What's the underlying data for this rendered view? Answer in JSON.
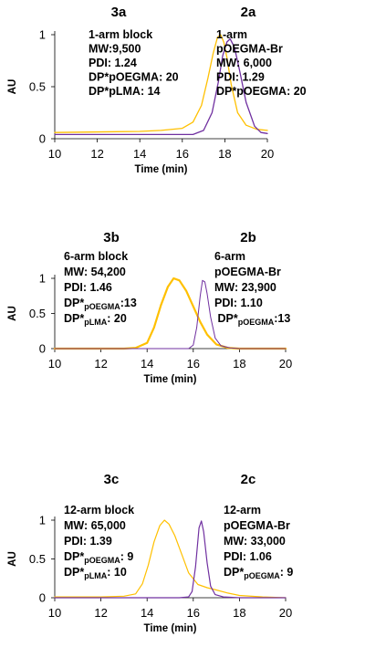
{
  "chart_data": [
    {
      "type": "line",
      "labels": {
        "left": "3a",
        "right": "2a"
      },
      "xlabel": "Time (min)",
      "ylabel": "AU",
      "xlim": [
        10,
        20
      ],
      "ylim": [
        0,
        1
      ],
      "xticks": [
        "10",
        "12",
        "14",
        "16",
        "18",
        "20"
      ],
      "yticks": [
        "0",
        "0.5",
        "1"
      ],
      "grid": false,
      "info_left": [
        [
          {
            "t": "1-arm block"
          }
        ],
        [
          {
            "t": "MW:9,500"
          }
        ],
        [
          {
            "t": "PDI: 1.24"
          }
        ],
        [
          {
            "t": "DP*pOEGMA: 20"
          }
        ],
        [
          {
            "t": "DP*pLMA: 14"
          }
        ]
      ],
      "info_right": [
        [
          {
            "t": "1-arm"
          }
        ],
        [
          {
            "t": "pOEGMA-Br"
          }
        ],
        [
          {
            "t": "MW: 6,000"
          }
        ],
        [
          {
            "t": "PDI: 1.29"
          }
        ],
        [
          {
            "t": "DP*pOEGMA: 20"
          }
        ]
      ],
      "series": [
        {
          "label": "3a",
          "color": "#ffc000",
          "width": 1.3,
          "x": [
            10,
            14,
            15,
            16,
            16.5,
            16.9,
            17.2,
            17.45,
            17.65,
            17.8,
            17.95,
            18.1,
            18.3,
            18.6,
            19.0,
            19.5,
            20
          ],
          "y": [
            0.06,
            0.07,
            0.08,
            0.1,
            0.16,
            0.32,
            0.58,
            0.82,
            0.97,
            1.0,
            0.93,
            0.78,
            0.52,
            0.25,
            0.13,
            0.09,
            0.08
          ]
        },
        {
          "label": "2a",
          "color": "#7030a0",
          "width": 1.3,
          "x": [
            10,
            14,
            15,
            16,
            16.5,
            17.0,
            17.4,
            17.7,
            17.9,
            18.1,
            18.25,
            18.45,
            18.7,
            19.0,
            19.4,
            19.7,
            20
          ],
          "y": [
            0.04,
            0.04,
            0.04,
            0.04,
            0.04,
            0.08,
            0.25,
            0.55,
            0.8,
            0.93,
            0.96,
            0.88,
            0.65,
            0.35,
            0.12,
            0.06,
            0.05
          ]
        }
      ]
    },
    {
      "type": "line",
      "labels": {
        "left": "3b",
        "right": "2b"
      },
      "xlabel": "Time (min)",
      "ylabel": "AU",
      "xlim": [
        10,
        20
      ],
      "ylim": [
        0,
        1
      ],
      "xticks": [
        "10",
        "12",
        "14",
        "16",
        "18",
        "20"
      ],
      "yticks": [
        "0",
        "0.5",
        "1"
      ],
      "grid": false,
      "info_left": [
        [
          {
            "t": "6-arm block"
          }
        ],
        [
          {
            "t": "MW: 54,200"
          }
        ],
        [
          {
            "t": "PDI: 1.46"
          }
        ],
        [
          {
            "t": "DP*"
          },
          {
            "t": "pOEGMA",
            "sub": true
          },
          {
            "t": ":13"
          }
        ],
        [
          {
            "t": "DP*"
          },
          {
            "t": "pLMA",
            "sub": true
          },
          {
            "t": ":   20"
          }
        ]
      ],
      "info_right": [
        [
          {
            "t": "6-arm"
          }
        ],
        [
          {
            "t": "pOEGMA-Br"
          }
        ],
        [
          {
            "t": "MW: 23,900"
          }
        ],
        [
          {
            "t": "PDI: 1.10"
          }
        ],
        [
          {
            "t": " DP*"
          },
          {
            "t": "pOEGMA",
            "sub": true
          },
          {
            "t": ":13"
          }
        ]
      ],
      "series": [
        {
          "label": "3b",
          "color": "#ffc000",
          "width": 2.2,
          "x": [
            10,
            13.0,
            13.5,
            14.0,
            14.3,
            14.6,
            14.9,
            15.15,
            15.4,
            15.7,
            16.0,
            16.3,
            16.6,
            17.0,
            17.5,
            18.0,
            19,
            20
          ],
          "y": [
            0,
            0,
            0.01,
            0.08,
            0.3,
            0.62,
            0.88,
            1.0,
            0.97,
            0.82,
            0.6,
            0.38,
            0.2,
            0.06,
            0.01,
            0,
            0,
            0
          ]
        },
        {
          "label": "2b",
          "color": "#7030a0",
          "width": 1.0,
          "x": [
            10,
            15,
            15.8,
            16.0,
            16.15,
            16.3,
            16.4,
            16.5,
            16.6,
            16.75,
            16.95,
            17.2,
            17.6,
            18,
            20
          ],
          "y": [
            0,
            0,
            0,
            0.05,
            0.3,
            0.75,
            0.97,
            0.95,
            0.78,
            0.45,
            0.15,
            0.04,
            0.01,
            0,
            0
          ]
        }
      ]
    },
    {
      "type": "line",
      "labels": {
        "left": "3c",
        "right": "2c"
      },
      "xlabel": "Time (min)",
      "ylabel": "AU",
      "xlim": [
        10,
        20
      ],
      "ylim": [
        0,
        1
      ],
      "xticks": [
        "10",
        "12",
        "14",
        "16",
        "18",
        "20"
      ],
      "yticks": [
        "0",
        "0.5",
        "1"
      ],
      "grid": false,
      "info_left": [
        [
          {
            "t": "12-arm block"
          }
        ],
        [
          {
            "t": "MW: 65,000"
          }
        ],
        [
          {
            "t": "PDI: 1.39"
          }
        ],
        [
          {
            "t": "DP*"
          },
          {
            "t": "pOEGMA",
            "sub": true
          },
          {
            "t": ": 9"
          }
        ],
        [
          {
            "t": "DP*"
          },
          {
            "t": "pLMA",
            "sub": true
          },
          {
            "t": ":    10"
          }
        ]
      ],
      "info_right": [
        [
          {
            "t": "12-arm"
          }
        ],
        [
          {
            "t": "pOEGMA-Br"
          }
        ],
        [
          {
            "t": "MW: 33,000"
          }
        ],
        [
          {
            "t": "PDI: 1.06"
          }
        ],
        [
          {
            "t": "DP*"
          },
          {
            "t": "pOEGMA",
            "sub": true
          },
          {
            "t": ": 9"
          }
        ]
      ],
      "series": [
        {
          "label": "3c",
          "color": "#ffc000",
          "width": 1.2,
          "x": [
            10,
            12,
            13.0,
            13.5,
            13.8,
            14.05,
            14.3,
            14.55,
            14.75,
            14.95,
            15.2,
            15.5,
            15.8,
            16.2,
            16.6,
            17.0,
            17.5,
            18,
            19,
            20
          ],
          "y": [
            0.01,
            0.01,
            0.02,
            0.05,
            0.18,
            0.42,
            0.72,
            0.93,
            1.0,
            0.95,
            0.8,
            0.56,
            0.32,
            0.17,
            0.13,
            0.1,
            0.06,
            0.03,
            0.01,
            0
          ]
        },
        {
          "label": "2c",
          "color": "#7030a0",
          "width": 1.2,
          "x": [
            10,
            14,
            15.4,
            15.8,
            15.95,
            16.1,
            16.25,
            16.35,
            16.45,
            16.6,
            16.75,
            16.95,
            17.3,
            18,
            20
          ],
          "y": [
            0,
            0,
            0,
            0.01,
            0.08,
            0.4,
            0.9,
            0.99,
            0.85,
            0.45,
            0.15,
            0.04,
            0.01,
            0,
            0
          ]
        }
      ]
    }
  ]
}
